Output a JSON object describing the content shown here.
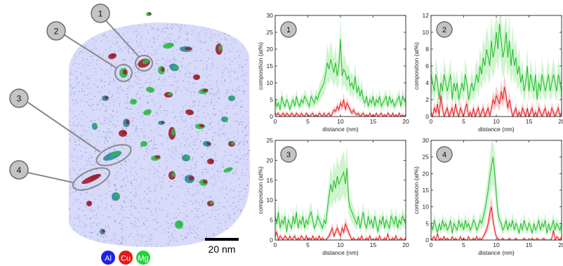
{
  "tomography": {
    "callouts": [
      "1",
      "2",
      "3",
      "4"
    ],
    "scale_bar": {
      "label": "20 nm"
    },
    "legend": [
      {
        "label": "Al",
        "color": "#1e22e6"
      },
      {
        "label": "Cu",
        "color": "#e81818"
      },
      {
        "label": "Mg",
        "color": "#22d43a"
      }
    ],
    "colors": {
      "matrix": "#4a52d8",
      "cluster_cu": "#9c1e2a",
      "cluster_mg": "#2fb848",
      "cluster_mixed": "#2a8a9a"
    }
  },
  "series_colors": {
    "Mg": "#27c02f",
    "Mg_band": "#bff0bf",
    "Cu": "#e8252a",
    "Cu_band": "#f6b9bb"
  },
  "chart_data": [
    {
      "type": "line",
      "badge": "1",
      "xlabel": "distance (nm)",
      "ylabel": "composition (at%)",
      "xlim": [
        0,
        20
      ],
      "ylim": [
        0,
        30
      ],
      "xticks": [
        0,
        5,
        10,
        15,
        20
      ],
      "yticks": [
        0,
        5,
        10,
        15,
        20,
        25,
        30
      ],
      "x_step": 0.25,
      "series": [
        {
          "values": [
            5,
            3,
            4,
            2,
            6,
            4,
            3,
            5,
            4,
            2,
            4,
            5,
            3,
            6,
            4,
            3,
            5,
            4,
            6,
            5,
            4,
            3,
            6,
            5,
            4,
            6,
            5,
            7,
            8,
            9,
            10,
            13,
            16,
            14,
            17,
            15,
            13,
            16,
            12,
            15,
            23,
            12,
            14,
            13,
            11,
            12,
            9,
            10,
            8,
            12,
            7,
            9,
            6,
            8,
            5,
            4,
            6,
            3,
            5,
            4,
            6,
            3,
            5,
            4,
            6,
            3,
            4,
            5,
            6,
            3,
            6,
            4,
            5,
            3,
            4,
            5,
            6,
            3,
            6,
            5,
            4
          ]
        },
        {
          "values": [
            1,
            0.5,
            1,
            0,
            0.5,
            1,
            0,
            1,
            0.5,
            0,
            1,
            0.5,
            0,
            1,
            0.5,
            0,
            1,
            0.3,
            0,
            1,
            0.5,
            0,
            0.5,
            1,
            0,
            0.5,
            0,
            1,
            0.5,
            0,
            1,
            0,
            0.5,
            1,
            0,
            1,
            2,
            1.5,
            3,
            2,
            4,
            3,
            5,
            2,
            4,
            3,
            2,
            1,
            2,
            1,
            0.5,
            1,
            0,
            0.5,
            1,
            0,
            0.5,
            0,
            1,
            0,
            0.5,
            0,
            1,
            0,
            0.5,
            1,
            0,
            0.5,
            0,
            1,
            0.5,
            0,
            1,
            0,
            0.5,
            0,
            1,
            0,
            0.5,
            0,
            0.5
          ]
        }
      ]
    },
    {
      "type": "line",
      "badge": "2",
      "xlabel": "distance (nm)",
      "ylabel": "composition (at%)",
      "xlim": [
        0,
        20
      ],
      "ylim": [
        0,
        12
      ],
      "xticks": [
        0,
        5,
        10,
        15,
        20
      ],
      "yticks": [
        0,
        2,
        4,
        6,
        8,
        10,
        12
      ],
      "x_step": 0.25,
      "series": [
        {
          "values": [
            5,
            4,
            3,
            5,
            4,
            2,
            4,
            3,
            5,
            4,
            3,
            4,
            5,
            2,
            4,
            3,
            4,
            2,
            3,
            4,
            3,
            5,
            4,
            2,
            3,
            4,
            3,
            4,
            5,
            4,
            6,
            5,
            7,
            6,
            8,
            7,
            6,
            9,
            7,
            8,
            10,
            8,
            11,
            9,
            7,
            8,
            10,
            7,
            9,
            6,
            8,
            6,
            7,
            5,
            6,
            4,
            5,
            3,
            4,
            6,
            3,
            5,
            4,
            3,
            5,
            2,
            4,
            3,
            5,
            4,
            3,
            4,
            5,
            3,
            4,
            5,
            4,
            3,
            5,
            4,
            3
          ]
        },
        {
          "values": [
            0.5,
            0,
            1,
            0.5,
            1.5,
            0,
            2.5,
            1,
            0,
            0.5,
            1,
            0,
            0.5,
            1,
            0,
            1.5,
            0.5,
            0,
            1,
            0.5,
            0,
            1,
            1.5,
            0,
            0.5,
            0,
            1,
            0,
            0.5,
            1,
            0,
            0.5,
            1,
            0,
            0.5,
            1,
            0,
            1,
            2,
            1.5,
            2.5,
            2,
            1.5,
            3,
            2,
            3.5,
            2.5,
            1,
            2,
            1,
            0,
            0.5,
            1,
            0,
            0.5,
            0,
            1,
            0.5,
            0,
            1,
            0,
            0.5,
            1,
            0,
            0.5,
            0,
            1,
            0.5,
            0,
            0.5,
            1,
            0,
            0.5,
            0,
            1,
            0.5,
            0,
            0.5,
            1,
            0,
            0.5
          ]
        }
      ]
    },
    {
      "type": "line",
      "badge": "3",
      "xlabel": "distance (nm)",
      "ylabel": "composition (at%)",
      "xlim": [
        0,
        20
      ],
      "ylim": [
        0,
        25
      ],
      "xticks": [
        0,
        5,
        10,
        15,
        20
      ],
      "yticks": [
        0,
        5,
        10,
        15,
        20,
        25
      ],
      "x_step": 0.25,
      "series": [
        {
          "values": [
            6,
            4,
            7,
            3,
            5,
            4,
            6,
            2,
            5,
            4,
            3,
            6,
            4,
            7,
            3,
            5,
            4,
            6,
            3,
            5,
            4,
            6,
            7,
            5,
            3,
            4,
            6,
            5,
            4,
            3,
            5,
            4,
            8,
            11,
            14,
            12,
            15,
            13,
            16,
            14,
            15,
            16,
            17,
            14,
            18,
            10,
            8,
            7,
            6,
            5,
            4,
            6,
            3,
            5,
            7,
            4,
            3,
            6,
            4,
            5,
            3,
            6,
            4,
            2,
            5,
            4,
            6,
            3,
            5,
            4,
            3,
            6,
            5,
            4,
            6,
            3,
            5,
            4,
            6,
            5,
            4
          ]
        },
        {
          "values": [
            1,
            2,
            0,
            1,
            0.5,
            0,
            1,
            0.5,
            0,
            1,
            0,
            0.5,
            1,
            0,
            0.5,
            0,
            1,
            0.5,
            0,
            1,
            0,
            0.5,
            0,
            1,
            0,
            0.5,
            0,
            1,
            0,
            0.5,
            0,
            0,
            0.5,
            1,
            2,
            3,
            1,
            2,
            3,
            2,
            1,
            3,
            2,
            4,
            3,
            2,
            1,
            0,
            0.5,
            0,
            0,
            0.5,
            0,
            1,
            0,
            0,
            0.5,
            0,
            1,
            0,
            0,
            0,
            0.5,
            0,
            1,
            0,
            0,
            0.5,
            0,
            1.5,
            0,
            0,
            0.5,
            0,
            1,
            0,
            0,
            0.5,
            0,
            0,
            0.5
          ]
        }
      ]
    },
    {
      "type": "line",
      "badge": "4",
      "xlabel": "distance (nm)",
      "ylabel": "composition (at%)",
      "xlim": [
        0,
        20
      ],
      "ylim": [
        0,
        30
      ],
      "xticks": [
        0,
        5,
        10,
        15,
        20
      ],
      "yticks": [
        0,
        5,
        10,
        15,
        20,
        25,
        30
      ],
      "x_step": 0.25,
      "series": [
        {
          "values": [
            5,
            3,
            6,
            4,
            2,
            5,
            3,
            6,
            4,
            5,
            3,
            4,
            6,
            2,
            5,
            4,
            3,
            6,
            4,
            5,
            3,
            6,
            4,
            5,
            3,
            4,
            6,
            5,
            3,
            4,
            6,
            5,
            7,
            9,
            12,
            15,
            19,
            22,
            25,
            20,
            14,
            8,
            6,
            5,
            3,
            4,
            6,
            3,
            5,
            4,
            6,
            3,
            5,
            4,
            2,
            5,
            3,
            6,
            4,
            3,
            5,
            4,
            2,
            5,
            3,
            4,
            6,
            3,
            5,
            4,
            6,
            2,
            5,
            3,
            4,
            6,
            3,
            5,
            4,
            3,
            5
          ]
        },
        {
          "values": [
            0,
            0.5,
            1,
            0,
            2,
            0,
            0.5,
            0,
            1,
            0,
            0.5,
            0,
            0,
            1,
            0,
            0.5,
            0,
            0,
            1,
            0,
            0.5,
            0,
            0,
            1,
            0,
            0,
            0.5,
            0,
            1,
            0,
            0.5,
            0,
            1,
            2,
            3,
            5,
            8,
            10,
            6,
            3,
            1,
            0.5,
            0,
            0,
            0.5,
            0,
            0,
            0,
            0.5,
            0,
            0,
            0,
            0.5,
            0,
            0,
            0,
            0,
            0.5,
            0,
            0,
            0,
            0,
            0.5,
            0,
            0,
            0.5,
            0,
            0,
            0,
            0.5,
            0,
            0,
            0,
            0,
            0.5,
            3,
            0,
            1,
            0.5,
            0,
            1
          ]
        }
      ]
    }
  ]
}
